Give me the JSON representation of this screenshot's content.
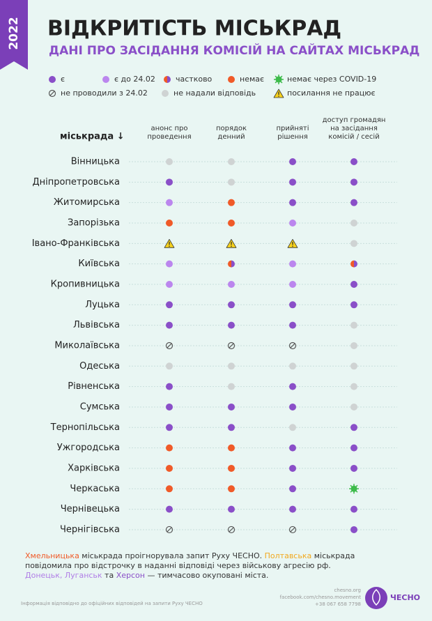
{
  "year": "2022",
  "title": "ВІДКРИТІСТЬ МІСЬКРАД",
  "subtitle": "ДАНІ ПРО ЗАСІДАННЯ КОМІСІЙ НА САЙТАХ МІСЬКРАД",
  "legend": [
    {
      "label": "є",
      "color": "#8a4fc8"
    },
    {
      "label": "є до 24.02",
      "color": "#bb86ee"
    },
    {
      "label": "частково",
      "color": "#f05a28"
    },
    {
      "label": "немає",
      "color": "#f05a28"
    },
    {
      "label": "немає через COVID-19",
      "color": "#3dbb4a"
    },
    {
      "label": "не проводили з 24.02",
      "color": "#555555"
    },
    {
      "label": "не надали відповідь",
      "color": "#cfd3d3"
    },
    {
      "label": "посилання не працює",
      "color": "#f7d21c"
    }
  ],
  "table": {
    "header": "міськрада ↓",
    "columns": [
      [
        "анонс про",
        "проведення"
      ],
      [
        "порядок",
        "денний"
      ],
      [
        "прийняті",
        "рішення"
      ],
      [
        "доступ громадян",
        "на засідання",
        "комісій / сесій"
      ]
    ],
    "rows": [
      {
        "city": "Вінницька",
        "cells": [
          6,
          6,
          0,
          0
        ]
      },
      {
        "city": "Дніпропетровська",
        "cells": [
          0,
          6,
          0,
          0
        ]
      },
      {
        "city": "Житомирська",
        "cells": [
          1,
          3,
          0,
          0
        ]
      },
      {
        "city": "Запорізька",
        "cells": [
          3,
          3,
          1,
          6
        ]
      },
      {
        "city": "Івано-Франківська",
        "cells": [
          7,
          7,
          7,
          6
        ]
      },
      {
        "city": "Київська",
        "cells": [
          1,
          2,
          1,
          2
        ]
      },
      {
        "city": "Кропивницька",
        "cells": [
          1,
          1,
          1,
          0
        ]
      },
      {
        "city": "Луцька",
        "cells": [
          0,
          0,
          0,
          0
        ]
      },
      {
        "city": "Львівська",
        "cells": [
          0,
          0,
          0,
          6
        ]
      },
      {
        "city": "Миколаївська",
        "cells": [
          5,
          5,
          5,
          6
        ]
      },
      {
        "city": "Одеська",
        "cells": [
          6,
          6,
          6,
          6
        ]
      },
      {
        "city": "Рівненська",
        "cells": [
          0,
          6,
          0,
          6
        ]
      },
      {
        "city": "Сумська",
        "cells": [
          0,
          0,
          0,
          6
        ]
      },
      {
        "city": "Тернопільська",
        "cells": [
          0,
          0,
          6,
          0
        ]
      },
      {
        "city": "Ужгородська",
        "cells": [
          3,
          3,
          0,
          0
        ]
      },
      {
        "city": "Харківська",
        "cells": [
          3,
          3,
          0,
          0
        ]
      },
      {
        "city": "Черкаська",
        "cells": [
          3,
          3,
          0,
          4
        ]
      },
      {
        "city": "Чернівецька",
        "cells": [
          0,
          0,
          0,
          0
        ]
      },
      {
        "city": "Чернігівська",
        "cells": [
          5,
          5,
          5,
          0
        ]
      }
    ]
  },
  "note": [
    [
      {
        "text": "Хмельницька",
        "color": "#f05a28"
      },
      {
        "text": " міськрада проігнорувала запит Руху ЧЕСНО. ",
        "color": "#333333"
      },
      {
        "text": "Полтавська",
        "color": "#f2a81d"
      },
      {
        "text": " міськрада",
        "color": "#333333"
      }
    ],
    [
      {
        "text": "повідомила про відстрочку в наданні відповіді через військову агресію рф.",
        "color": "#333333"
      }
    ],
    [
      {
        "text": "Донецьк, Луганськ",
        "color": "#b07ee6"
      },
      {
        "text": " та ",
        "color": "#333333"
      },
      {
        "text": "Херсон",
        "color": "#8a4fc8"
      },
      {
        "text": " — тимчасово окуповані міста.",
        "color": "#333333"
      }
    ]
  ],
  "footer": {
    "source": "Інформація відповідно до офіційних відповідей на запити Руху ЧЕСНО",
    "contacts": [
      "chesno.org",
      "facebook.com/chesno.movement",
      "+38 067 658 7798"
    ],
    "logo": "ЧЕСНО"
  }
}
